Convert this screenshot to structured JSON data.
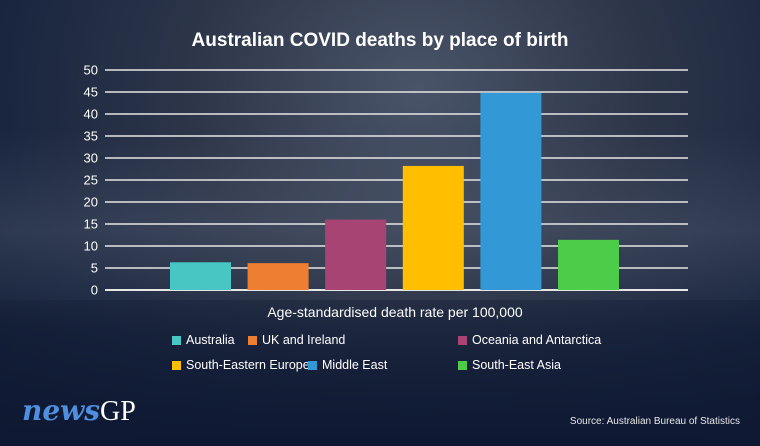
{
  "chart_data": {
    "type": "bar",
    "title": "Australian COVID deaths by place of birth",
    "xlabel": "Age-standardised death rate per 100,000",
    "ylabel": "",
    "ylim": [
      0,
      50
    ],
    "yticks": [
      0,
      5,
      10,
      15,
      20,
      25,
      30,
      35,
      40,
      45,
      50
    ],
    "grid": true,
    "legend_placement": "bottom",
    "categories": [
      "Australia",
      "UK and Ireland",
      "Oceania and Antarctica",
      "South-Eastern Europe",
      "Middle East",
      "South-East Asia"
    ],
    "values": [
      6.3,
      6.1,
      16.0,
      28.2,
      44.8,
      11.4
    ],
    "colors": [
      "#47c6c4",
      "#ee7f32",
      "#a74474",
      "#ffbf00",
      "#3399d6",
      "#4ccc48"
    ]
  },
  "branding": {
    "logo_news": "news",
    "logo_gp": "GP"
  },
  "source": "Source: Australian Bureau of Statistics"
}
